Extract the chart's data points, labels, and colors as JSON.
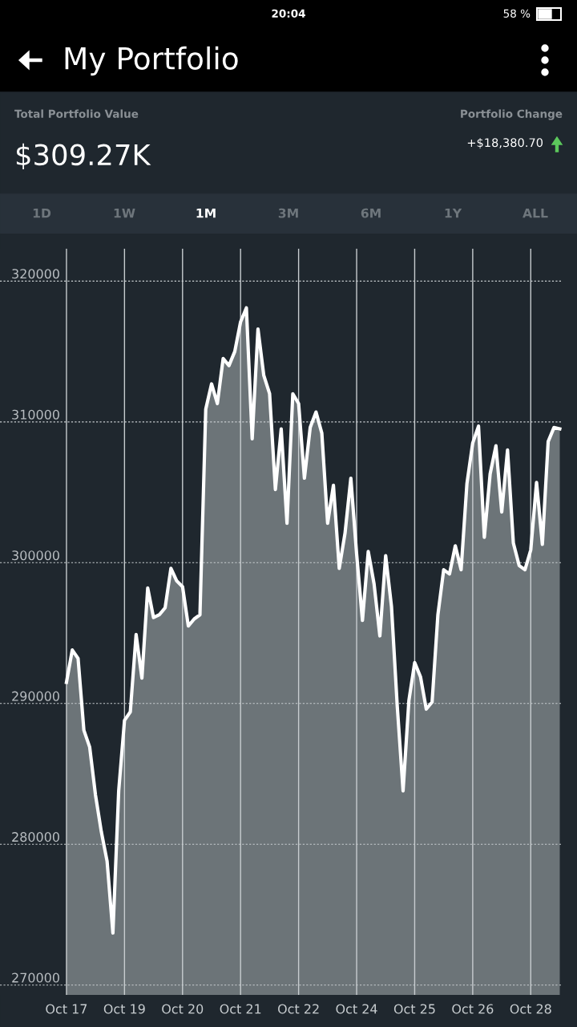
{
  "chart_data": {
    "type": "area",
    "title": "My Portfolio",
    "annotations": [
      "20:04",
      "58 %",
      "Total Portfolio Value",
      "$309.27K",
      "Portfolio Change",
      "+$18,380.70",
      "1D",
      "1W",
      "1M",
      "3M",
      "6M",
      "1Y",
      "ALL"
    ],
    "categories": [
      "Oct 17",
      null,
      null,
      null,
      null,
      null,
      null,
      null,
      null,
      null,
      "Oct 19",
      null,
      null,
      null,
      null,
      null,
      null,
      null,
      null,
      null,
      "Oct 20",
      null,
      null,
      null,
      null,
      null,
      null,
      null,
      null,
      null,
      "Oct 21",
      null,
      null,
      null,
      null,
      null,
      null,
      null,
      null,
      null,
      "Oct 22",
      null,
      null,
      null,
      null,
      null,
      null,
      null,
      null,
      null,
      "Oct 24",
      null,
      null,
      null,
      null,
      null,
      null,
      null,
      null,
      null,
      "Oct 25",
      null,
      null,
      null,
      null,
      null,
      null,
      null,
      null,
      null,
      "Oct 26",
      null,
      null,
      null,
      null,
      null,
      null,
      null,
      null,
      null,
      "Oct 28",
      null,
      null,
      null,
      null,
      null
    ],
    "series": [
      {
        "color": "#6c7478",
        "values": [
          291500,
          293800,
          293200,
          288100,
          286900,
          283500,
          280900,
          278800,
          273700,
          283800,
          288800,
          289400,
          294900,
          291800,
          298200,
          296100,
          296300,
          296800,
          299600,
          298700,
          298300,
          295500,
          296000,
          296300,
          310900,
          312700,
          311300,
          314500,
          314000,
          315000,
          317100,
          318100,
          308800,
          316600,
          313300,
          312000,
          305200,
          309500,
          302800,
          312000,
          311300,
          306000,
          309600,
          310700,
          309200,
          302800,
          305500,
          299600,
          302100,
          306000,
          300600,
          295900,
          300800,
          298500,
          294800,
          300500,
          296900,
          289800,
          283800,
          290200,
          292900,
          291900,
          289600,
          290100,
          296300,
          299500,
          299200,
          301200,
          299500,
          305600,
          308500,
          309700,
          301800,
          306300,
          308300,
          303600,
          308000,
          301400,
          299800,
          299500,
          300900,
          305700,
          301300,
          308600,
          309600,
          309500
        ]
      }
    ],
    "ylim": [
      269300,
      322300
    ],
    "yticks": [
      270000,
      280000,
      290000,
      300000,
      310000,
      320000
    ],
    "grid": true,
    "legend": false
  }
}
